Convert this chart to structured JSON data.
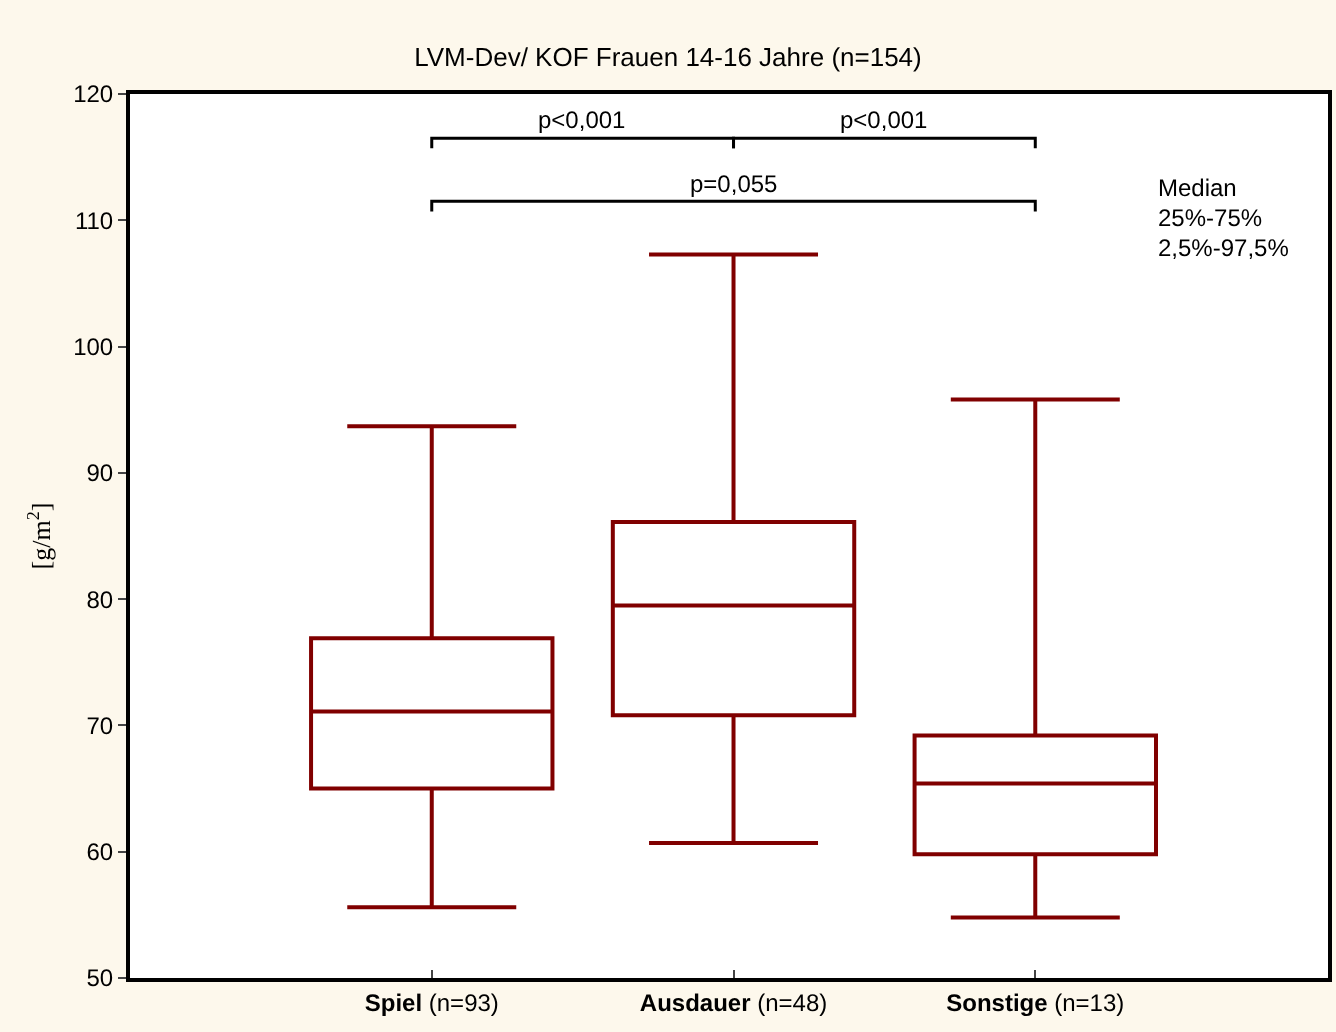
{
  "chart_data": {
    "type": "box",
    "title": "LVM-Dev/ KOF Frauen 14-16 Jahre (n=154)",
    "ylabel": "[g/m$^{2}$]",
    "categories": [
      "Spiel (n=93)",
      "Ausdauer (n=48)",
      "Sonstige (n=13)"
    ],
    "boxes": [
      {
        "low": 55.6,
        "q1": 65.0,
        "median": 71.1,
        "q3": 76.9,
        "high": 93.7
      },
      {
        "low": 60.7,
        "q1": 70.8,
        "median": 79.5,
        "q3": 86.1,
        "high": 107.3
      },
      {
        "low": 54.8,
        "q1": 59.8,
        "median": 65.4,
        "q3": 69.2,
        "high": 95.8
      }
    ],
    "color": "#800000",
    "annotations": [
      "p<0,001",
      "p<0,001",
      "p=0,055",
      "Median",
      "25%-75%",
      "2,5%-97,5%"
    ],
    "ylim": [
      50,
      120
    ],
    "yticks": [
      50,
      60,
      70,
      80,
      90,
      100,
      110,
      120
    ]
  }
}
